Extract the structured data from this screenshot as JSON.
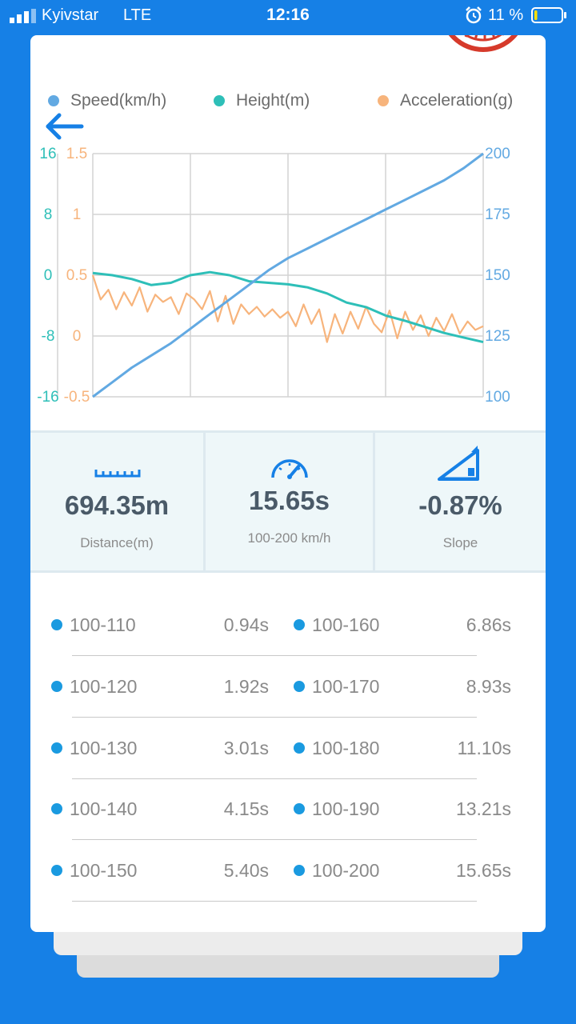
{
  "status_bar": {
    "carrier": "Kyivstar",
    "network": "LTE",
    "time": "12:16",
    "battery": "11 %",
    "battery_level": 0.11
  },
  "legend": [
    {
      "label": "Speed(km/h)",
      "color": "#62a9e2"
    },
    {
      "label": "Height(m)",
      "color": "#2ebfb8"
    },
    {
      "label": "Acceleration(g)",
      "color": "#f7b47c"
    }
  ],
  "chart_data": {
    "type": "line",
    "grid": true,
    "x_ticks": [],
    "axes": {
      "height_left": {
        "ticks": [
          "16",
          "8",
          "0",
          "-8",
          "-16"
        ],
        "range": [
          -16,
          16
        ],
        "color": "#2ebfb8"
      },
      "accel_left": {
        "ticks": [
          "1.5",
          "1",
          "0.5",
          "0",
          "-0.5"
        ],
        "range": [
          -0.5,
          1.5
        ],
        "color": "#f7b47c"
      },
      "speed_right": {
        "ticks": [
          "200",
          "175",
          "150",
          "125",
          "100"
        ],
        "range": [
          100,
          200
        ],
        "color": "#62a9e2"
      }
    },
    "series": [
      {
        "name": "Speed(km/h)",
        "axis": "speed_right",
        "color": "#62a9e2",
        "x": [
          0,
          0.05,
          0.1,
          0.15,
          0.2,
          0.25,
          0.3,
          0.35,
          0.4,
          0.45,
          0.5,
          0.55,
          0.6,
          0.65,
          0.7,
          0.75,
          0.8,
          0.85,
          0.9,
          0.95,
          1.0
        ],
        "values": [
          100,
          106,
          112,
          117,
          122,
          128,
          134,
          140,
          146,
          152,
          157,
          161,
          165,
          169,
          173,
          177,
          181,
          185,
          189,
          194,
          200
        ]
      },
      {
        "name": "Height(m)",
        "axis": "height_left",
        "color": "#2ebfb8",
        "x": [
          0,
          0.05,
          0.1,
          0.15,
          0.2,
          0.25,
          0.3,
          0.35,
          0.4,
          0.45,
          0.5,
          0.55,
          0.6,
          0.65,
          0.7,
          0.75,
          0.8,
          0.85,
          0.9,
          0.95,
          1.0
        ],
        "values": [
          0.3,
          0.0,
          -0.5,
          -1.3,
          -1.0,
          0.0,
          0.4,
          0.0,
          -0.8,
          -1.0,
          -1.2,
          -1.6,
          -2.4,
          -3.6,
          -4.2,
          -5.3,
          -6.0,
          -6.8,
          -7.6,
          -8.2,
          -8.8
        ]
      },
      {
        "name": "Acceleration(g)",
        "axis": "accel_left",
        "color": "#f7b47c",
        "x": [
          0,
          0.02,
          0.04,
          0.06,
          0.08,
          0.1,
          0.12,
          0.14,
          0.16,
          0.18,
          0.2,
          0.22,
          0.24,
          0.26,
          0.28,
          0.3,
          0.32,
          0.34,
          0.36,
          0.38,
          0.4,
          0.42,
          0.44,
          0.46,
          0.48,
          0.5,
          0.52,
          0.54,
          0.56,
          0.58,
          0.6,
          0.62,
          0.64,
          0.66,
          0.68,
          0.7,
          0.72,
          0.74,
          0.76,
          0.78,
          0.8,
          0.82,
          0.84,
          0.86,
          0.88,
          0.9,
          0.92,
          0.94,
          0.96,
          0.98,
          1.0
        ],
        "values": [
          0.5,
          0.3,
          0.38,
          0.22,
          0.36,
          0.25,
          0.4,
          0.2,
          0.34,
          0.28,
          0.32,
          0.18,
          0.35,
          0.3,
          0.22,
          0.37,
          0.12,
          0.33,
          0.1,
          0.26,
          0.18,
          0.24,
          0.16,
          0.22,
          0.15,
          0.2,
          0.08,
          0.26,
          0.1,
          0.22,
          -0.05,
          0.18,
          0.02,
          0.2,
          0.06,
          0.24,
          0.1,
          0.03,
          0.21,
          -0.02,
          0.2,
          0.05,
          0.17,
          0.0,
          0.15,
          0.04,
          0.18,
          0.02,
          0.12,
          0.05,
          0.08
        ]
      }
    ]
  },
  "stats": [
    {
      "value": "694.35m",
      "label": "Distance(m)",
      "icon": "ruler-icon"
    },
    {
      "value": "15.65s",
      "label": "100-200 km/h",
      "icon": "speedometer-icon"
    },
    {
      "value": "-0.87%",
      "label": "Slope",
      "icon": "slope-icon"
    }
  ],
  "splits": [
    {
      "left_label": "100-110",
      "left_value": "0.94s",
      "right_label": "100-160",
      "right_value": "6.86s"
    },
    {
      "left_label": "100-120",
      "left_value": "1.92s",
      "right_label": "100-170",
      "right_value": "8.93s"
    },
    {
      "left_label": "100-130",
      "left_value": "3.01s",
      "right_label": "100-180",
      "right_value": "11.10s"
    },
    {
      "left_label": "100-140",
      "left_value": "4.15s",
      "right_label": "100-190",
      "right_value": "13.21s"
    },
    {
      "left_label": "100-150",
      "left_value": "5.40s",
      "right_label": "100-200",
      "right_value": "15.65s"
    }
  ]
}
